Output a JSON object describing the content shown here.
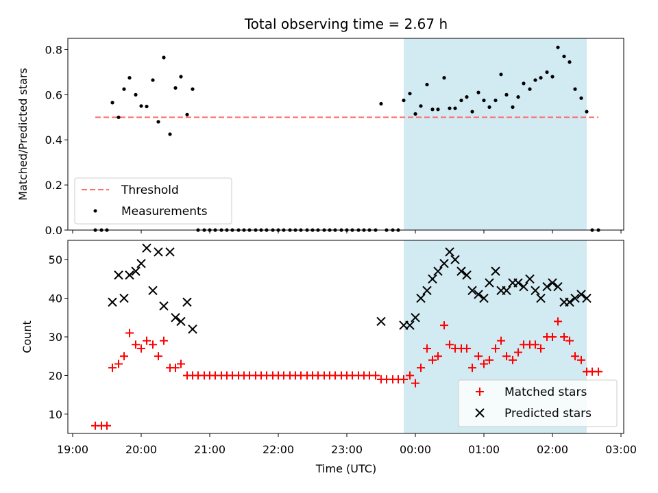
{
  "chart_data": [
    {
      "type": "scatter",
      "title": "Total observing time = 2.67 h",
      "ylabel": "Matched/Predicted stars",
      "xlabel": "",
      "ylim": [
        0,
        0.85
      ],
      "yticks": [
        "0.0",
        "0.2",
        "0.4",
        "0.6",
        "0.8"
      ],
      "ytick_values": [
        0,
        0.2,
        0.4,
        0.6,
        0.8
      ],
      "xlim_hours": [
        18.93,
        27.04
      ],
      "shaded_span_hours": [
        23.83,
        26.5
      ],
      "shade_color": "#add8e6",
      "legend_position": "lower left",
      "threshold": {
        "name": "Threshold",
        "value": 0.5,
        "x_range_hours": [
          19.33,
          26.67
        ],
        "color": "#ff7070"
      },
      "measurements": {
        "name": "Measurements",
        "color": "#000000",
        "points": [
          [
            19.33,
            0
          ],
          [
            19.42,
            0
          ],
          [
            19.5,
            0
          ],
          [
            19.58,
            0.565
          ],
          [
            19.67,
            0.5
          ],
          [
            19.75,
            0.625
          ],
          [
            19.83,
            0.675
          ],
          [
            19.92,
            0.6
          ],
          [
            20.0,
            0.55
          ],
          [
            20.08,
            0.548
          ],
          [
            20.17,
            0.665
          ],
          [
            20.25,
            0.48
          ],
          [
            20.33,
            0.765
          ],
          [
            20.42,
            0.425
          ],
          [
            20.5,
            0.63
          ],
          [
            20.58,
            0.68
          ],
          [
            20.67,
            0.512
          ],
          [
            20.75,
            0.625
          ],
          [
            20.83,
            0
          ],
          [
            20.92,
            0
          ],
          [
            21.0,
            0
          ],
          [
            21.08,
            0
          ],
          [
            21.17,
            0
          ],
          [
            21.25,
            0
          ],
          [
            21.33,
            0
          ],
          [
            21.42,
            0
          ],
          [
            21.5,
            0
          ],
          [
            21.58,
            0
          ],
          [
            21.67,
            0
          ],
          [
            21.75,
            0
          ],
          [
            21.83,
            0
          ],
          [
            21.92,
            0
          ],
          [
            22.0,
            0
          ],
          [
            22.08,
            0
          ],
          [
            22.17,
            0
          ],
          [
            22.25,
            0
          ],
          [
            22.33,
            0
          ],
          [
            22.42,
            0
          ],
          [
            22.5,
            0
          ],
          [
            22.58,
            0
          ],
          [
            22.67,
            0
          ],
          [
            22.75,
            0
          ],
          [
            22.83,
            0
          ],
          [
            22.92,
            0
          ],
          [
            23.0,
            0
          ],
          [
            23.08,
            0
          ],
          [
            23.17,
            0
          ],
          [
            23.25,
            0
          ],
          [
            23.33,
            0
          ],
          [
            23.42,
            0
          ],
          [
            23.5,
            0.56
          ],
          [
            23.58,
            0
          ],
          [
            23.67,
            0
          ],
          [
            23.75,
            0
          ],
          [
            23.83,
            0.575
          ],
          [
            23.92,
            0.605
          ],
          [
            24.0,
            0.515
          ],
          [
            24.08,
            0.55
          ],
          [
            24.17,
            0.645
          ],
          [
            24.25,
            0.535
          ],
          [
            24.33,
            0.535
          ],
          [
            24.42,
            0.675
          ],
          [
            24.5,
            0.54
          ],
          [
            24.58,
            0.54
          ],
          [
            24.67,
            0.575
          ],
          [
            24.75,
            0.59
          ],
          [
            24.83,
            0.525
          ],
          [
            24.92,
            0.61
          ],
          [
            25.0,
            0.575
          ],
          [
            25.08,
            0.545
          ],
          [
            25.17,
            0.575
          ],
          [
            25.25,
            0.69
          ],
          [
            25.33,
            0.6
          ],
          [
            25.42,
            0.545
          ],
          [
            25.5,
            0.59
          ],
          [
            25.58,
            0.65
          ],
          [
            25.67,
            0.625
          ],
          [
            25.75,
            0.665
          ],
          [
            25.83,
            0.675
          ],
          [
            25.92,
            0.7
          ],
          [
            26.0,
            0.68
          ],
          [
            26.08,
            0.81
          ],
          [
            26.17,
            0.77
          ],
          [
            26.25,
            0.745
          ],
          [
            26.33,
            0.625
          ],
          [
            26.42,
            0.585
          ],
          [
            26.5,
            0.525
          ],
          [
            26.58,
            0
          ],
          [
            26.67,
            0
          ]
        ]
      }
    },
    {
      "type": "scatter",
      "xlabel": "Time (UTC)",
      "ylabel": "Count",
      "ylim": [
        5,
        55
      ],
      "yticks": [
        "10",
        "20",
        "30",
        "40",
        "50"
      ],
      "ytick_values": [
        10,
        20,
        30,
        40,
        50
      ],
      "xlim_hours": [
        18.93,
        27.04
      ],
      "xticks": [
        "19:00",
        "20:00",
        "21:00",
        "22:00",
        "23:00",
        "00:00",
        "01:00",
        "02:00",
        "03:00"
      ],
      "xtick_hours": [
        19,
        20,
        21,
        22,
        23,
        24,
        25,
        26,
        27
      ],
      "shaded_span_hours": [
        23.83,
        26.5
      ],
      "shade_color": "#add8e6",
      "legend_position": "lower right",
      "series": [
        {
          "name": "Matched stars",
          "marker": "plus",
          "color": "#ff0000",
          "points": [
            [
              19.33,
              7
            ],
            [
              19.42,
              7
            ],
            [
              19.5,
              7
            ],
            [
              19.58,
              22
            ],
            [
              19.67,
              23
            ],
            [
              19.75,
              25
            ],
            [
              19.83,
              31
            ],
            [
              19.92,
              28
            ],
            [
              20.0,
              27
            ],
            [
              20.08,
              29
            ],
            [
              20.17,
              28
            ],
            [
              20.25,
              25
            ],
            [
              20.33,
              29
            ],
            [
              20.42,
              22
            ],
            [
              20.5,
              22
            ],
            [
              20.58,
              23
            ],
            [
              20.67,
              20
            ],
            [
              20.75,
              20
            ],
            [
              20.83,
              20
            ],
            [
              20.92,
              20
            ],
            [
              21.0,
              20
            ],
            [
              21.08,
              20
            ],
            [
              21.17,
              20
            ],
            [
              21.25,
              20
            ],
            [
              21.33,
              20
            ],
            [
              21.42,
              20
            ],
            [
              21.5,
              20
            ],
            [
              21.58,
              20
            ],
            [
              21.67,
              20
            ],
            [
              21.75,
              20
            ],
            [
              21.83,
              20
            ],
            [
              21.92,
              20
            ],
            [
              22.0,
              20
            ],
            [
              22.08,
              20
            ],
            [
              22.17,
              20
            ],
            [
              22.25,
              20
            ],
            [
              22.33,
              20
            ],
            [
              22.42,
              20
            ],
            [
              22.5,
              20
            ],
            [
              22.58,
              20
            ],
            [
              22.67,
              20
            ],
            [
              22.75,
              20
            ],
            [
              22.83,
              20
            ],
            [
              22.92,
              20
            ],
            [
              23.0,
              20
            ],
            [
              23.08,
              20
            ],
            [
              23.17,
              20
            ],
            [
              23.25,
              20
            ],
            [
              23.33,
              20
            ],
            [
              23.42,
              20
            ],
            [
              23.5,
              19
            ],
            [
              23.58,
              19
            ],
            [
              23.67,
              19
            ],
            [
              23.75,
              19
            ],
            [
              23.83,
              19
            ],
            [
              23.92,
              20
            ],
            [
              24.0,
              18
            ],
            [
              24.08,
              22
            ],
            [
              24.17,
              27
            ],
            [
              24.25,
              24
            ],
            [
              24.33,
              25
            ],
            [
              24.42,
              33
            ],
            [
              24.5,
              28
            ],
            [
              24.58,
              27
            ],
            [
              24.67,
              27
            ],
            [
              24.75,
              27
            ],
            [
              24.83,
              22
            ],
            [
              24.92,
              25
            ],
            [
              25.0,
              23
            ],
            [
              25.08,
              24
            ],
            [
              25.17,
              27
            ],
            [
              25.25,
              29
            ],
            [
              25.33,
              25
            ],
            [
              25.42,
              24
            ],
            [
              25.5,
              26
            ],
            [
              25.58,
              28
            ],
            [
              25.67,
              28
            ],
            [
              25.75,
              28
            ],
            [
              25.83,
              27
            ],
            [
              25.92,
              30
            ],
            [
              26.0,
              30
            ],
            [
              26.08,
              34
            ],
            [
              26.17,
              30
            ],
            [
              26.25,
              29
            ],
            [
              26.33,
              25
            ],
            [
              26.42,
              24
            ],
            [
              26.5,
              21
            ],
            [
              26.58,
              21
            ],
            [
              26.67,
              21
            ]
          ]
        },
        {
          "name": "Predicted stars",
          "marker": "x",
          "color": "#000000",
          "points": [
            [
              19.58,
              39
            ],
            [
              19.67,
              46
            ],
            [
              19.75,
              40
            ],
            [
              19.83,
              46
            ],
            [
              19.92,
              47
            ],
            [
              20.0,
              49
            ],
            [
              20.08,
              53
            ],
            [
              20.17,
              42
            ],
            [
              20.25,
              52
            ],
            [
              20.33,
              38
            ],
            [
              20.42,
              52
            ],
            [
              20.5,
              35
            ],
            [
              20.58,
              34
            ],
            [
              20.67,
              39
            ],
            [
              20.75,
              32
            ],
            [
              23.5,
              34
            ],
            [
              23.83,
              33
            ],
            [
              23.92,
              33
            ],
            [
              24.0,
              35
            ],
            [
              24.08,
              40
            ],
            [
              24.17,
              42
            ],
            [
              24.25,
              45
            ],
            [
              24.33,
              47
            ],
            [
              24.42,
              49
            ],
            [
              24.5,
              52
            ],
            [
              24.58,
              50
            ],
            [
              24.67,
              47
            ],
            [
              24.75,
              46
            ],
            [
              24.83,
              42
            ],
            [
              24.92,
              41
            ],
            [
              25.0,
              40
            ],
            [
              25.08,
              44
            ],
            [
              25.17,
              47
            ],
            [
              25.25,
              42
            ],
            [
              25.33,
              42
            ],
            [
              25.42,
              44
            ],
            [
              25.5,
              44
            ],
            [
              25.58,
              43
            ],
            [
              25.67,
              45
            ],
            [
              25.75,
              42
            ],
            [
              25.83,
              40
            ],
            [
              25.92,
              43
            ],
            [
              26.0,
              44
            ],
            [
              26.08,
              43
            ],
            [
              26.17,
              39
            ],
            [
              26.25,
              39
            ],
            [
              26.33,
              40
            ],
            [
              26.42,
              41
            ],
            [
              26.5,
              40
            ]
          ]
        }
      ]
    }
  ]
}
